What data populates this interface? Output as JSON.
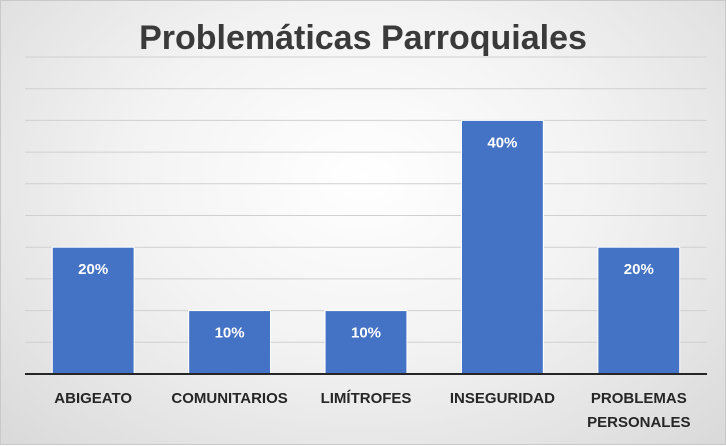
{
  "chart_data": {
    "type": "bar",
    "title": "Problemáticas Parroquiales",
    "categories": [
      "ABIGEATO",
      "COMUNITARIOS",
      "LIMÍTROFES",
      "INSEGURIDAD",
      "PROBLEMAS PERSONALES"
    ],
    "values": [
      20,
      10,
      10,
      40,
      20
    ],
    "data_labels": [
      "20%",
      "10%",
      "10%",
      "40%",
      "20%"
    ],
    "value_unit": "%",
    "ylim": [
      0,
      50
    ],
    "grid": true,
    "legend": "none",
    "colors": {
      "bar": "#4472c4",
      "label": "#ffffff",
      "axis_text": "#262626"
    }
  }
}
